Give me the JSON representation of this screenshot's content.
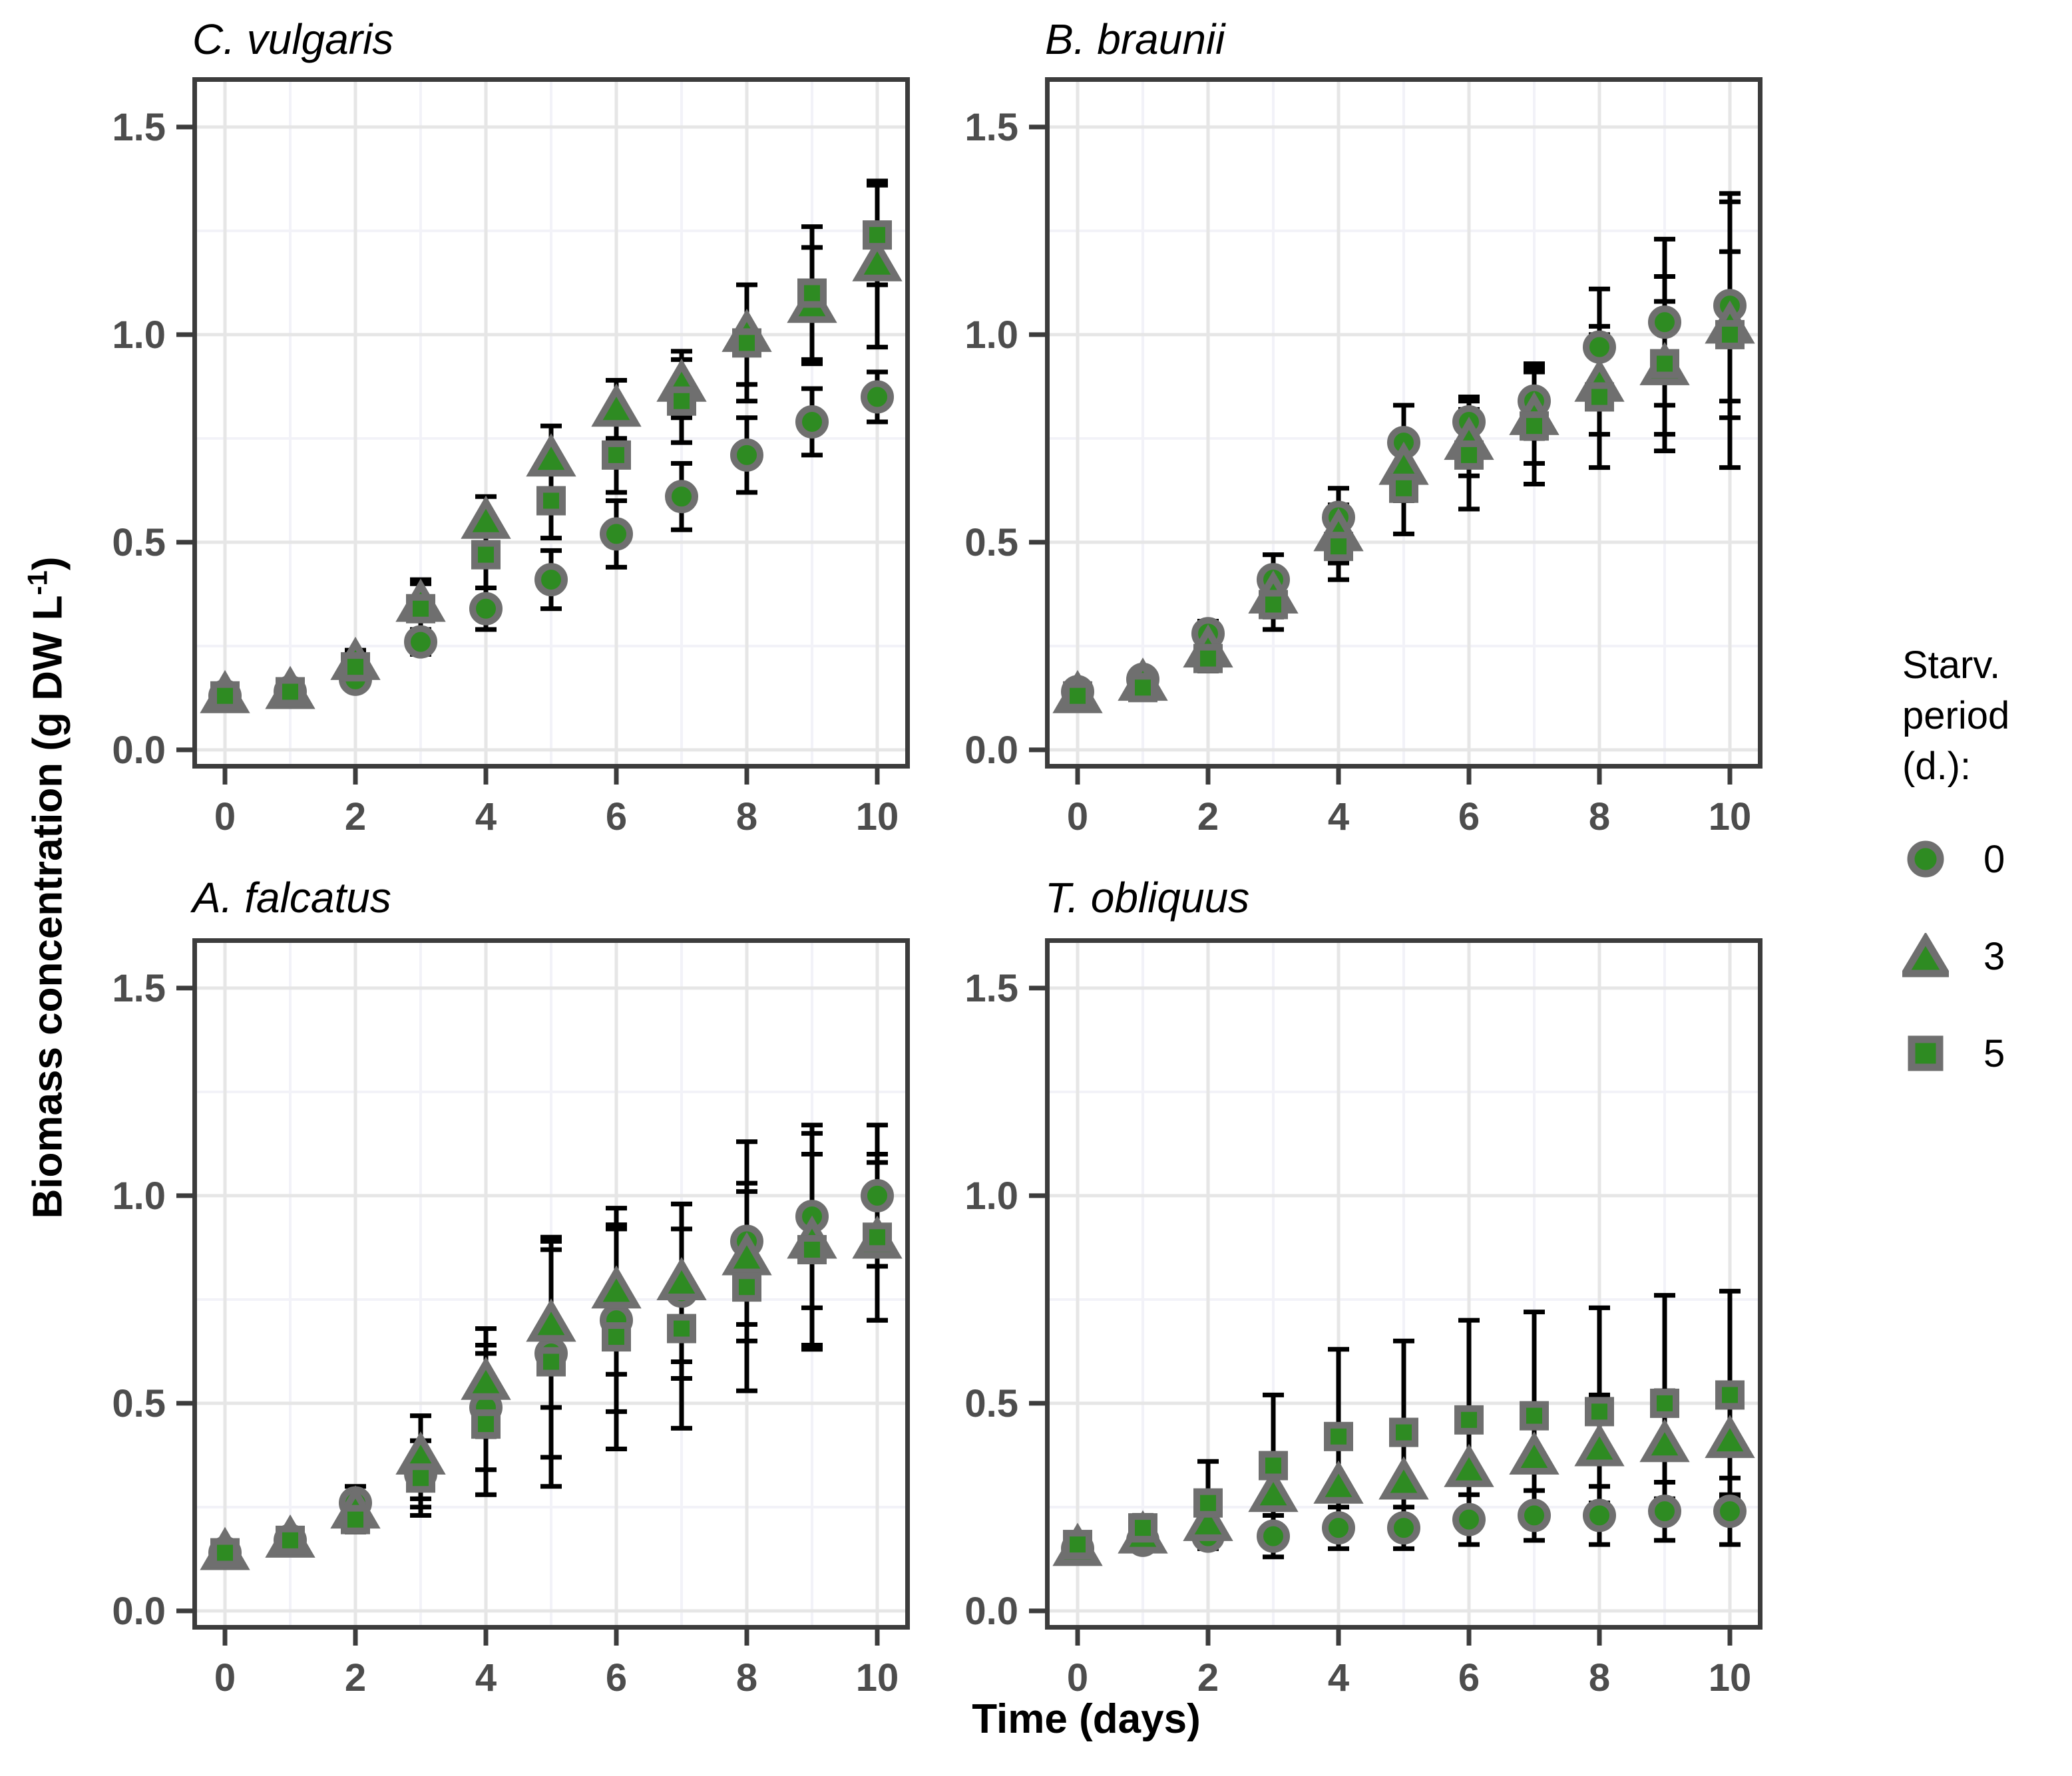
{
  "figure": {
    "x_axis_label": "Time (days)",
    "y_axis_label_pre": "Biomass concentration (g DW L",
    "y_axis_label_sup": "-1",
    "y_axis_label_post": ")"
  },
  "legend": {
    "title_line1": "Starv.",
    "title_line2": "period (d.):",
    "items": [
      {
        "label": "0",
        "marker": "circle"
      },
      {
        "label": "3",
        "marker": "triangle"
      },
      {
        "label": "5",
        "marker": "square"
      }
    ]
  },
  "colors": {
    "marker_fill": "#2e8b22",
    "marker_stroke": "#6f6f6f",
    "error_bar": "#000000",
    "panel_border": "#3c3c3c",
    "tick_label": "#4d4d4d",
    "grid_major": "#e6e6e6",
    "grid_minor": "#f2f2f8",
    "background": "#ffffff"
  },
  "chart_data": {
    "type": "scatter",
    "x": [
      0,
      1,
      2,
      3,
      4,
      5,
      6,
      7,
      8,
      9,
      10
    ],
    "x_ticks": [
      0,
      2,
      4,
      6,
      8,
      10
    ],
    "x_minor_ticks": [
      1,
      3,
      5,
      7,
      9
    ],
    "y_ticks": [
      0.0,
      0.5,
      1.0,
      1.5
    ],
    "y_minor_ticks": [
      0.25,
      0.75,
      1.25
    ],
    "xlim": [
      -0.5,
      10.5
    ],
    "ylim": [
      -0.045,
      1.62
    ],
    "xlabel": "Time (days)",
    "ylabel": "Biomass concentration (g DW L-1)",
    "legend_position": "right",
    "grid": true,
    "panels": [
      {
        "title": "C. vulgaris",
        "series": [
          {
            "name": "0",
            "marker": "circle",
            "values": [
              0.13,
              0.14,
              0.17,
              0.26,
              0.34,
              0.41,
              0.52,
              0.61,
              0.71,
              0.79,
              0.85
            ],
            "errors": [
              0.01,
              0.01,
              0.02,
              0.03,
              0.05,
              0.07,
              0.08,
              0.08,
              0.09,
              0.08,
              0.06
            ]
          },
          {
            "name": "3",
            "marker": "triangle",
            "values": [
              0.13,
              0.14,
              0.21,
              0.35,
              0.55,
              0.7,
              0.82,
              0.88,
              1.0,
              1.07,
              1.17
            ],
            "errors": [
              0.01,
              0.01,
              0.03,
              0.06,
              0.06,
              0.08,
              0.07,
              0.08,
              0.12,
              0.14,
              0.2
            ]
          },
          {
            "name": "5",
            "marker": "square",
            "values": [
              0.13,
              0.14,
              0.2,
              0.34,
              0.47,
              0.6,
              0.71,
              0.84,
              0.98,
              1.1,
              1.24
            ],
            "errors": [
              0.01,
              0.01,
              0.03,
              0.06,
              0.08,
              0.09,
              0.09,
              0.1,
              0.14,
              0.16,
              0.12
            ]
          }
        ]
      },
      {
        "title": "B. braunii",
        "series": [
          {
            "name": "0",
            "marker": "circle",
            "values": [
              0.14,
              0.17,
              0.28,
              0.41,
              0.56,
              0.74,
              0.79,
              0.84,
              0.97,
              1.03,
              1.07
            ],
            "errors": [
              0.01,
              0.02,
              0.03,
              0.06,
              0.07,
              0.09,
              0.06,
              0.09,
              0.14,
              0.2,
              0.27
            ]
          },
          {
            "name": "3",
            "marker": "triangle",
            "values": [
              0.13,
              0.16,
              0.24,
              0.37,
              0.52,
              0.68,
              0.74,
              0.8,
              0.88,
              0.92,
              1.02
            ],
            "errors": [
              0.01,
              0.02,
              0.03,
              0.05,
              0.07,
              0.08,
              0.08,
              0.11,
              0.12,
              0.16,
              0.18
            ]
          },
          {
            "name": "5",
            "marker": "square",
            "values": [
              0.13,
              0.15,
              0.22,
              0.35,
              0.49,
              0.63,
              0.71,
              0.78,
              0.85,
              0.93,
              1.0
            ],
            "errors": [
              0.01,
              0.02,
              0.03,
              0.06,
              0.08,
              0.11,
              0.13,
              0.14,
              0.17,
              0.21,
              0.32
            ]
          }
        ]
      },
      {
        "title": "A. falcatus",
        "series": [
          {
            "name": "0",
            "marker": "circle",
            "values": [
              0.14,
              0.17,
              0.26,
              0.33,
              0.49,
              0.62,
              0.7,
              0.77,
              0.89,
              0.95,
              1.0
            ],
            "errors": [
              0.01,
              0.02,
              0.04,
              0.08,
              0.15,
              0.25,
              0.22,
              0.21,
              0.24,
              0.22,
              0.17
            ]
          },
          {
            "name": "3",
            "marker": "triangle",
            "values": [
              0.14,
              0.17,
              0.24,
              0.37,
              0.55,
              0.69,
              0.77,
              0.79,
              0.85,
              0.89,
              0.89
            ],
            "errors": [
              0.01,
              0.02,
              0.04,
              0.1,
              0.13,
              0.2,
              0.2,
              0.19,
              0.16,
              0.26,
              0.19
            ]
          },
          {
            "name": "5",
            "marker": "square",
            "values": [
              0.14,
              0.17,
              0.22,
              0.32,
              0.45,
              0.6,
              0.66,
              0.68,
              0.78,
              0.87,
              0.9
            ],
            "errors": [
              0.01,
              0.02,
              0.03,
              0.09,
              0.17,
              0.3,
              0.27,
              0.24,
              0.25,
              0.23,
              0.2
            ]
          }
        ]
      },
      {
        "title": "T. obliquus",
        "series": [
          {
            "name": "0",
            "marker": "circle",
            "values": [
              0.15,
              0.17,
              0.18,
              0.18,
              0.2,
              0.2,
              0.22,
              0.23,
              0.23,
              0.24,
              0.24
            ],
            "errors": [
              0.01,
              0.02,
              0.03,
              0.05,
              0.05,
              0.05,
              0.06,
              0.06,
              0.07,
              0.07,
              0.08
            ]
          },
          {
            "name": "3",
            "marker": "triangle",
            "values": [
              0.15,
              0.18,
              0.21,
              0.28,
              0.3,
              0.31,
              0.34,
              0.37,
              0.39,
              0.4,
              0.41
            ],
            "errors": [
              0.01,
              0.02,
              0.04,
              0.09,
              0.1,
              0.11,
              0.12,
              0.12,
              0.13,
              0.13,
              0.13
            ]
          },
          {
            "name": "5",
            "marker": "square",
            "values": [
              0.16,
              0.2,
              0.26,
              0.35,
              0.42,
              0.43,
              0.46,
              0.47,
              0.48,
              0.5,
              0.52
            ],
            "errors": [
              0.01,
              0.03,
              0.1,
              0.17,
              0.21,
              0.22,
              0.24,
              0.25,
              0.25,
              0.26,
              0.25
            ]
          }
        ]
      }
    ]
  }
}
